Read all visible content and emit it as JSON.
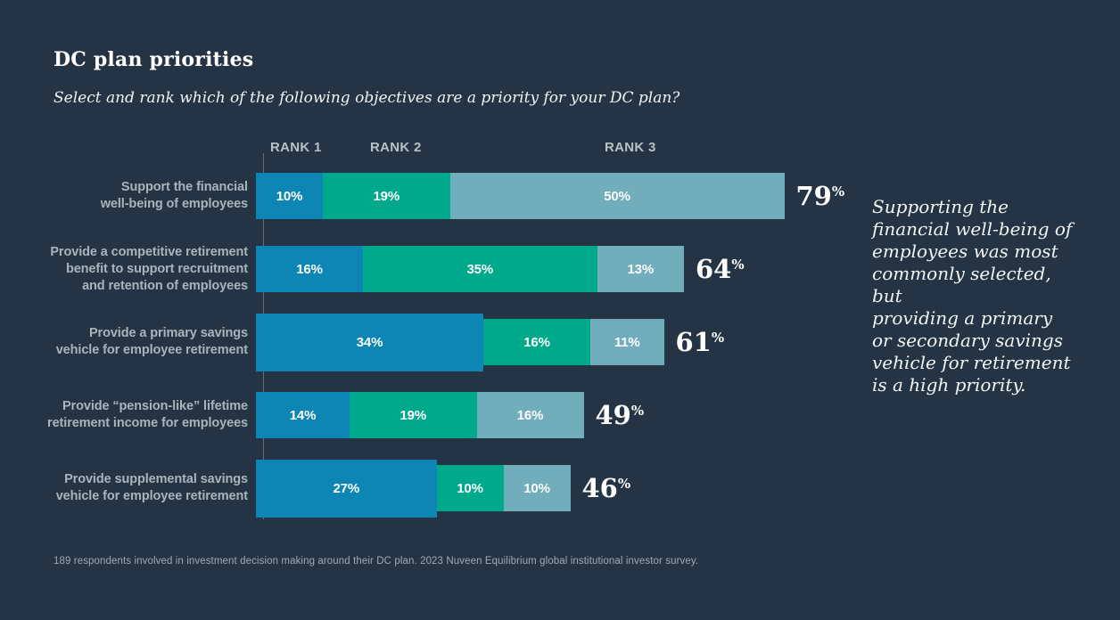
{
  "header": {
    "title": "DC plan priorities",
    "subtitle": "Select and rank which of the following objectives are a priority for your DC plan?"
  },
  "chart_data": {
    "type": "bar",
    "stacked": true,
    "orientation": "horizontal",
    "title": "DC plan priorities",
    "subtitle": "Select and rank which of the following objectives are a priority for your DC plan?",
    "rank_headers": [
      "RANK 1",
      "RANK 2",
      "RANK 3"
    ],
    "categories": [
      "Support the financial\nwell-being of employees",
      "Provide a competitive retirement\nbenefit to support recruitment\nand retention of employees",
      "Provide a primary savings\nvehicle for employee retirement",
      "Provide “pension-like” lifetime\nretirement income for employees",
      "Provide supplemental savings\nvehicle for employee retirement"
    ],
    "series": [
      {
        "name": "Rank 1",
        "color": "#0d86b5",
        "values": [
          10,
          16,
          34,
          14,
          27
        ]
      },
      {
        "name": "Rank 2",
        "color": "#00a98b",
        "values": [
          19,
          35,
          16,
          19,
          10
        ]
      },
      {
        "name": "Rank 3",
        "color": "#72adbb",
        "values": [
          50,
          13,
          11,
          16,
          10
        ]
      }
    ],
    "totals": [
      79,
      64,
      61,
      49,
      46
    ],
    "percent_sign": "%",
    "emphasized_rank1_rows": [
      2,
      4
    ],
    "value_unit": "percent",
    "axis": {
      "x_min": 0,
      "x_max": 79,
      "gridlines": false,
      "baseline_shown": true
    },
    "legend_position": "top"
  },
  "annotation": {
    "text": "Supporting the\nfinancial well-being of\nemployees was most\ncommonly selected, but\nproviding a primary\nor secondary savings\nvehicle for retirement\nis a high priority."
  },
  "footer": {
    "note": "189 respondents involved in investment decision making around their DC plan. 2023 Nuveen Equilibrium global institutional investor survey."
  },
  "colors": {
    "background": "#243444",
    "rank1_blue": "#0d86b5",
    "rank2_teal": "#00a98b",
    "rank3_gray_blue": "#72adbb",
    "label_gray": "#a9b4bc",
    "text_white": "#f2f5f6"
  }
}
